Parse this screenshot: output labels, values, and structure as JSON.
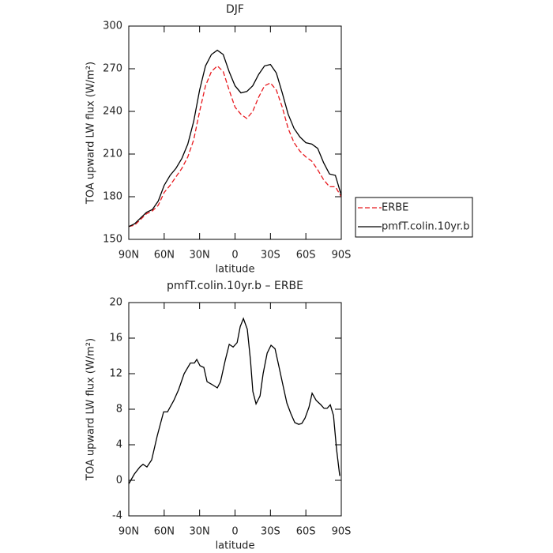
{
  "chart_data": [
    {
      "type": "line",
      "title": "DJF",
      "xlabel": "latitude",
      "ylabel": "TOA upward LW flux (W/m²)",
      "x": [
        90,
        85,
        80,
        75,
        70,
        65,
        60,
        55,
        50,
        45,
        40,
        35,
        30,
        25,
        20,
        15,
        10,
        5,
        0,
        -5,
        -10,
        -15,
        -20,
        -25,
        -30,
        -35,
        -40,
        -45,
        -50,
        -55,
        -60,
        -65,
        -70,
        -75,
        -80,
        -85,
        -90
      ],
      "series": [
        {
          "name": "ERBE",
          "color": "#e8191e",
          "dash": "dashed",
          "values": [
            159,
            160,
            164,
            168,
            170,
            174,
            183,
            188,
            194,
            200,
            208,
            220,
            240,
            258,
            268,
            272,
            268,
            255,
            243,
            238,
            235,
            240,
            250,
            258,
            260,
            255,
            243,
            228,
            218,
            212,
            208,
            205,
            199,
            192,
            187,
            187,
            180
          ]
        },
        {
          "name": "pmfT.colin.10yr.b",
          "color": "#000000",
          "dash": "solid",
          "values": [
            159,
            161,
            165,
            169,
            171,
            177,
            188,
            195,
            200,
            207,
            217,
            233,
            255,
            272,
            280,
            283,
            280,
            268,
            258,
            253,
            254,
            258,
            266,
            272,
            273,
            267,
            253,
            238,
            228,
            222,
            218,
            217,
            214,
            204,
            196,
            195,
            181
          ]
        }
      ],
      "xlim": [
        90,
        -90
      ],
      "xticks": [
        {
          "value": 90,
          "label": "90N"
        },
        {
          "value": 60,
          "label": "60N"
        },
        {
          "value": 30,
          "label": "30N"
        },
        0,
        {
          "value": -30,
          "label": "30S"
        },
        {
          "value": -60,
          "label": "60S"
        },
        {
          "value": -90,
          "label": "90S"
        }
      ],
      "ylim": [
        150,
        300
      ],
      "yticks": [
        150,
        180,
        210,
        240,
        270,
        300
      ],
      "legend": "outside-right"
    },
    {
      "type": "line",
      "title": "pmfT.colin.10yr.b – ERBE",
      "xlabel": "latitude",
      "ylabel": "TOA upward LW flux (W/m²)",
      "x": [
        90,
        85.3,
        80.6,
        77.9,
        74.6,
        70.6,
        65.9,
        60.5,
        57.2,
        51.8,
        47.8,
        43.1,
        37.8,
        34.4,
        32.4,
        29.7,
        26.4,
        23.7,
        19.7,
        15,
        12.3,
        8.3,
        4.9,
        1.6,
        -1.8,
        -4.4,
        -7.1,
        -10.4,
        -13.1,
        -15.1,
        -17.8,
        -21.2,
        -23.8,
        -27.2,
        -30.5,
        -33.9,
        -37.2,
        -40.6,
        -43.9,
        -47.3,
        -50.6,
        -53.9,
        -56.6,
        -59.3,
        -62.6,
        -65.3,
        -68.7,
        -72.7,
        -75.4,
        -78,
        -80.7,
        -83.4,
        -86,
        -88.7
      ],
      "series": [
        {
          "color": "#000000",
          "dash": "solid",
          "values": [
            -0.4,
            0.7,
            1.5,
            1.8,
            1.5,
            2.3,
            5,
            7.7,
            7.7,
            9,
            10.2,
            12,
            13.2,
            13.2,
            13.6,
            12.9,
            12.7,
            11.1,
            10.8,
            10.4,
            11.1,
            13.5,
            15.3,
            15,
            15.5,
            17.3,
            18.2,
            17,
            13.5,
            10,
            8.6,
            9.5,
            12,
            14.3,
            15.2,
            14.8,
            12.8,
            10.7,
            8.7,
            7.5,
            6.5,
            6.3,
            6.4,
            7,
            8.2,
            9.8,
            9,
            8.5,
            8.1,
            8.1,
            8.5,
            7.3,
            3.5,
            0.5
          ]
        }
      ],
      "xlim": [
        90,
        -90
      ],
      "xticks": [
        {
          "value": 90,
          "label": "90N"
        },
        {
          "value": 60,
          "label": "60N"
        },
        {
          "value": 30,
          "label": "30N"
        },
        0,
        {
          "value": -30,
          "label": "30S"
        },
        {
          "value": -60,
          "label": "60S"
        },
        {
          "value": -90,
          "label": "90S"
        }
      ],
      "ylim": [
        -4,
        20
      ],
      "yticks": [
        -4,
        0,
        4,
        8,
        12,
        16,
        20
      ]
    }
  ]
}
